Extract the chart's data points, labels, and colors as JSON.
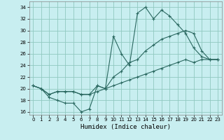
{
  "xlabel": "Humidex (Indice chaleur)",
  "bg_color": "#c8eef0",
  "grid_color": "#90c8c0",
  "line_color": "#2a6860",
  "xlim": [
    -0.5,
    23.5
  ],
  "ylim": [
    15.5,
    35.0
  ],
  "xticks": [
    0,
    1,
    2,
    3,
    4,
    5,
    6,
    7,
    8,
    9,
    10,
    11,
    12,
    13,
    14,
    15,
    16,
    17,
    18,
    19,
    20,
    21,
    22,
    23
  ],
  "yticks": [
    16,
    18,
    20,
    22,
    24,
    26,
    28,
    30,
    32,
    34
  ],
  "line_main_x": [
    0,
    1,
    2,
    3,
    4,
    5,
    6,
    7,
    8,
    9,
    10,
    11,
    12,
    13,
    14,
    15,
    16,
    17,
    18,
    19,
    20,
    21,
    22,
    23
  ],
  "line_main_y": [
    20.5,
    20.0,
    18.5,
    18.0,
    17.5,
    17.5,
    16.0,
    16.5,
    20.5,
    20.0,
    29.0,
    26.0,
    24.0,
    33.0,
    34.0,
    32.0,
    33.5,
    32.5,
    31.0,
    29.5,
    27.0,
    25.5,
    25.0,
    25.0
  ],
  "line_low_x": [
    0,
    1,
    2,
    3,
    4,
    5,
    6,
    7,
    8,
    9,
    10,
    11,
    12,
    13,
    14,
    15,
    16,
    17,
    18,
    19,
    20,
    21,
    22,
    23
  ],
  "line_low_y": [
    20.5,
    20.0,
    19.0,
    19.5,
    19.5,
    19.5,
    19.0,
    19.0,
    19.5,
    20.0,
    20.5,
    21.0,
    21.5,
    22.0,
    22.5,
    23.0,
    23.5,
    24.0,
    24.5,
    25.0,
    24.5,
    25.0,
    25.0,
    25.0
  ],
  "line_high_x": [
    0,
    1,
    2,
    3,
    4,
    5,
    6,
    7,
    8,
    9,
    10,
    11,
    12,
    13,
    14,
    15,
    16,
    17,
    18,
    19,
    20,
    21,
    22,
    23
  ],
  "line_high_y": [
    20.5,
    20.0,
    19.0,
    19.5,
    19.5,
    19.5,
    19.0,
    19.0,
    20.5,
    20.0,
    22.0,
    23.0,
    24.5,
    25.0,
    26.5,
    27.5,
    28.5,
    29.0,
    29.5,
    30.0,
    29.5,
    26.5,
    25.0,
    25.0
  ]
}
